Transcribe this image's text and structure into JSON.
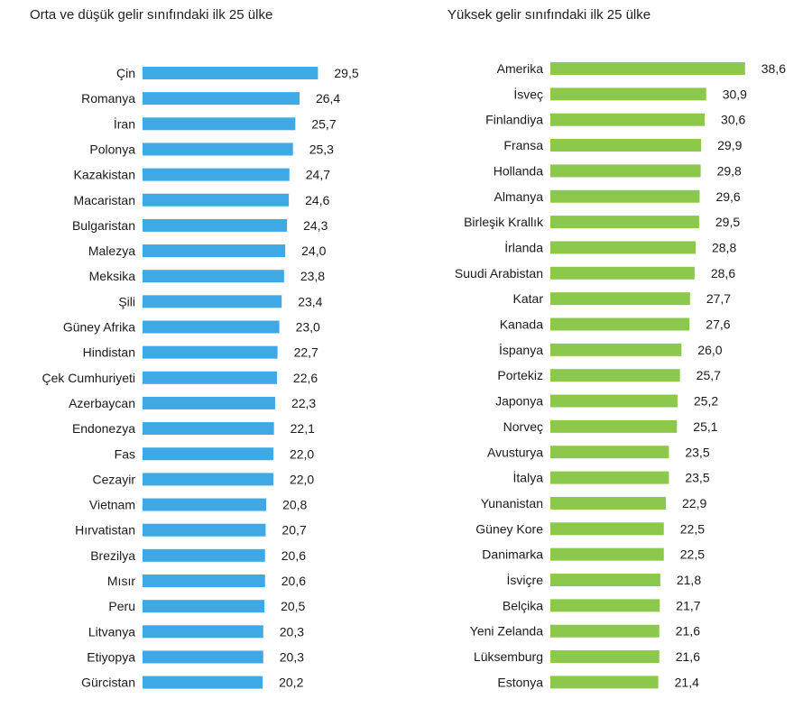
{
  "chart_data": [
    {
      "type": "bar",
      "orientation": "horizontal",
      "title": "Orta ve düşük gelir sınıfındaki ilk 25 ülke",
      "bar_color": "#3fa9e6",
      "categories": [
        "Çin",
        "Romanya",
        "İran",
        "Polonya",
        "Kazakistan",
        "Macaristan",
        "Bulgaristan",
        "Malezya",
        "Meksika",
        "Şili",
        "Güney Afrika",
        "Hindistan",
        "Çek Cumhuriyeti",
        "Azerbaycan",
        "Endonezya",
        "Fas",
        "Cezayir",
        "Vietnam",
        "Hırvatistan",
        "Brezilya",
        "Mısır",
        "Peru",
        "Litvanya",
        "Etiyopya",
        "Gürcistan"
      ],
      "values": [
        29.5,
        26.4,
        25.7,
        25.3,
        24.7,
        24.6,
        24.3,
        24.0,
        23.8,
        23.4,
        23.0,
        22.7,
        22.6,
        22.3,
        22.1,
        22.0,
        22.0,
        20.8,
        20.7,
        20.6,
        20.6,
        20.5,
        20.3,
        20.3,
        20.2
      ],
      "value_labels": [
        "29,5",
        "26,4",
        "25,7",
        "25,3",
        "24,7",
        "24,6",
        "24,3",
        "24,0",
        "23,8",
        "23,4",
        "23,0",
        "22,7",
        "22,6",
        "22,3",
        "22,1",
        "22,0",
        "22,0",
        "20,8",
        "20,7",
        "20,6",
        "20,6",
        "20,5",
        "20,3",
        "20,3",
        "20,2"
      ],
      "axis_visible": false,
      "grid": false,
      "legend": "none"
    },
    {
      "type": "bar",
      "orientation": "horizontal",
      "title": "Yüksek gelir sınıfındaki ilk 25 ülke",
      "bar_color": "#8cc84b",
      "categories": [
        "Amerika",
        "İsveç",
        "Finlandiya",
        "Fransa",
        "Hollanda",
        "Almanya",
        "Birleşik Krallık",
        "İrlanda",
        "Suudi Arabistan",
        "Katar",
        "Kanada",
        "İspanya",
        "Portekiz",
        "Japonya",
        "Norveç",
        "Avusturya",
        "İtalya",
        "Yunanistan",
        "Güney Kore",
        "Danimarka",
        "İsviçre",
        "Belçika",
        "Yeni Zelanda",
        "Lüksemburg",
        "Estonya"
      ],
      "values": [
        38.6,
        30.9,
        30.6,
        29.9,
        29.8,
        29.6,
        29.5,
        28.8,
        28.6,
        27.7,
        27.6,
        26.0,
        25.7,
        25.2,
        25.1,
        23.5,
        23.5,
        22.9,
        22.5,
        22.5,
        21.8,
        21.7,
        21.6,
        21.6,
        21.4
      ],
      "value_labels": [
        "38,6",
        "30,9",
        "30,6",
        "29,9",
        "29,8",
        "29,6",
        "29,5",
        "28,8",
        "28,6",
        "27,7",
        "27,6",
        "26,0",
        "25,7",
        "25,2",
        "25,1",
        "23,5",
        "23,5",
        "22,9",
        "22,5",
        "22,5",
        "21,8",
        "21,7",
        "21,6",
        "21,6",
        "21,4"
      ],
      "axis_visible": false,
      "grid": false,
      "legend": "none"
    }
  ]
}
